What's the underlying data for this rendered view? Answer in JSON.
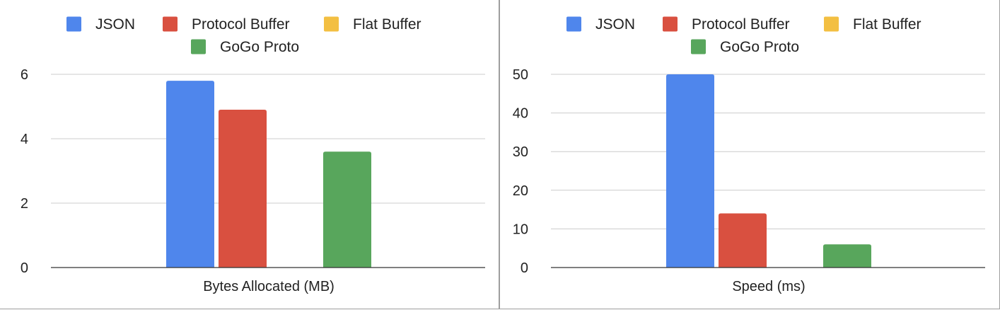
{
  "chart_data": [
    {
      "type": "bar",
      "categories": [
        "Bytes Allocated (MB)"
      ],
      "series": [
        {
          "name": "JSON",
          "values": [
            5.8
          ],
          "color": "#4f86ec"
        },
        {
          "name": "Protocol Buffer",
          "values": [
            4.9
          ],
          "color": "#d95040"
        },
        {
          "name": "Flat Buffer",
          "values": [
            0
          ],
          "color": "#f3bf42"
        },
        {
          "name": "GoGo Proto",
          "values": [
            3.6
          ],
          "color": "#58a65c"
        }
      ],
      "yticks": [
        0,
        2,
        4,
        6
      ],
      "ylim": [
        0,
        6
      ],
      "grid": true,
      "legend": "top"
    },
    {
      "type": "bar",
      "categories": [
        "Speed (ms)"
      ],
      "series": [
        {
          "name": "JSON",
          "values": [
            50
          ],
          "color": "#4f86ec"
        },
        {
          "name": "Protocol Buffer",
          "values": [
            14
          ],
          "color": "#d95040"
        },
        {
          "name": "Flat Buffer",
          "values": [
            0
          ],
          "color": "#f3bf42"
        },
        {
          "name": "GoGo Proto",
          "values": [
            6
          ],
          "color": "#58a65c"
        }
      ],
      "yticks": [
        0,
        10,
        20,
        30,
        40,
        50
      ],
      "ylim": [
        0,
        50
      ],
      "grid": true,
      "legend": "top"
    }
  ]
}
